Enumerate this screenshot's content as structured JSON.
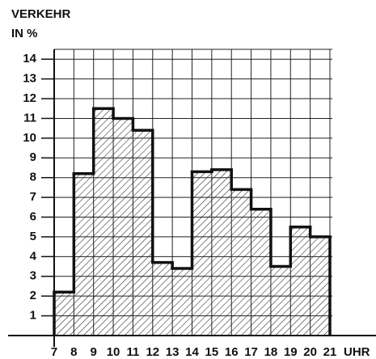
{
  "chart_data": {
    "type": "histogram",
    "ylabel": [
      "VERKEHR",
      "IN %"
    ],
    "xlabel": "UHR",
    "bins": [
      7,
      8,
      9,
      10,
      11,
      12,
      13,
      14,
      15,
      16,
      17,
      18,
      19,
      20,
      21
    ],
    "values": [
      2.2,
      8.2,
      11.5,
      11.0,
      10.4,
      3.7,
      3.4,
      8.3,
      8.4,
      7.4,
      6.4,
      3.5,
      5.5,
      5.0
    ],
    "xlim": [
      7,
      21
    ],
    "ylim": [
      0,
      14.5
    ],
    "xticks": [
      7,
      8,
      9,
      10,
      11,
      12,
      13,
      14,
      15,
      16,
      17,
      18,
      19,
      20,
      21
    ],
    "yticks": [
      1,
      2,
      3,
      4,
      5,
      6,
      7,
      8,
      9,
      10,
      11,
      12,
      13,
      14
    ],
    "grid": true,
    "color": "#111111"
  }
}
